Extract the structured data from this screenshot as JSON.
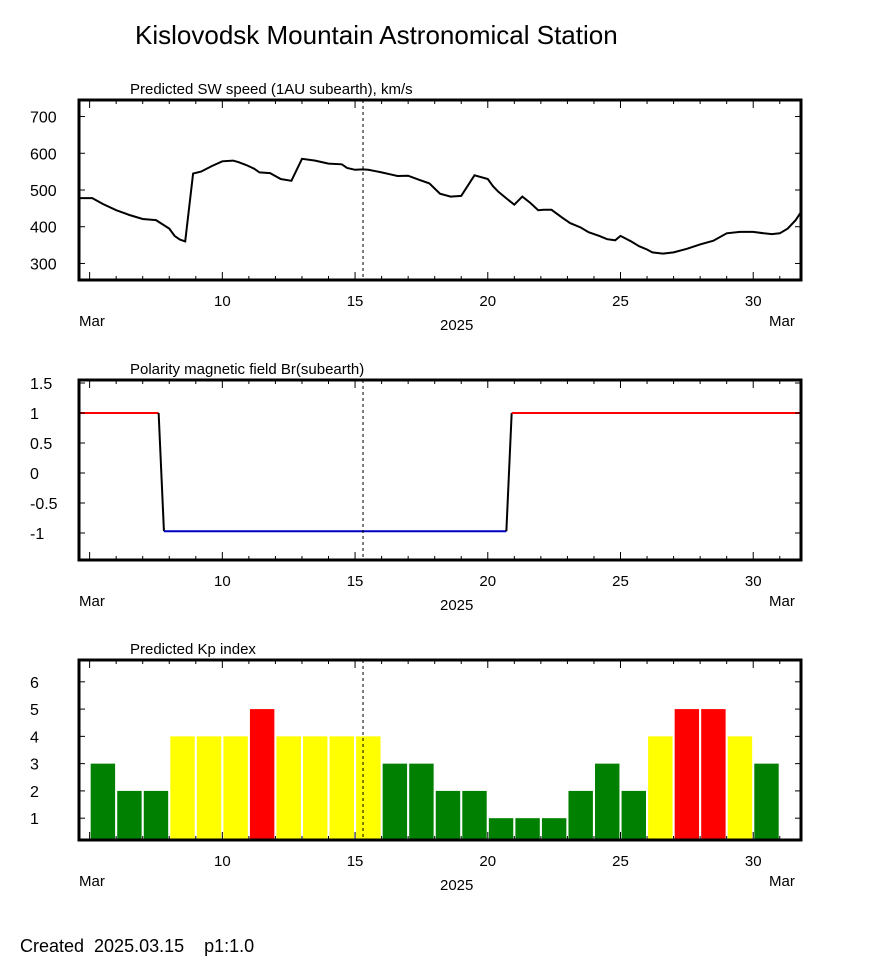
{
  "title": "Kislovodsk Mountain Astronomical Station",
  "footer": "Created  2025.03.15    p1:1.0",
  "colors": {
    "axis": "#000000",
    "speed_line": "#000000",
    "polarity_positive": "#ff0000",
    "polarity_negative": "#0000c0",
    "polarity_transition": "#000000",
    "kp_low": "#008000",
    "kp_mid": "#ffff00",
    "kp_high": "#ff0000",
    "now_marker": "#000000"
  },
  "shared_x": {
    "tick_labels": [
      "10",
      "15",
      "20",
      "25",
      "30"
    ],
    "left_month": "Mar",
    "right_month": "Mar",
    "year_label": "2025",
    "now_day": 15.3
  },
  "chart_data": [
    {
      "type": "line",
      "title": "Predicted SW speed (1AU subearth), km/s",
      "xlim": [
        4.6,
        31.8
      ],
      "ylim": [
        255,
        745
      ],
      "yticks": [
        "700",
        "600",
        "500",
        "400",
        "300"
      ],
      "grid": false,
      "series": [
        {
          "x": [
            4.6,
            5.1,
            5.5,
            6.0,
            6.5,
            7.0,
            7.5,
            8.0,
            8.2,
            8.4,
            8.6,
            8.9,
            9.2,
            9.6,
            10.0,
            10.4,
            10.6,
            10.9,
            11.2,
            11.4,
            11.8,
            12.2,
            12.6,
            13.0,
            13.5,
            14.0,
            14.5,
            14.7,
            15.0,
            15.3,
            15.5,
            15.8,
            16.0,
            16.3,
            16.6,
            17.0,
            17.4,
            17.8,
            18.2,
            18.6,
            19.0,
            19.5,
            20.0,
            20.2,
            20.4,
            20.7,
            21.0,
            21.3,
            21.6,
            21.9,
            22.1,
            22.4,
            22.8,
            23.1,
            23.5,
            23.8,
            24.2,
            24.5,
            24.8,
            25.0,
            25.4,
            25.7,
            26.0,
            26.2,
            26.6,
            27.0,
            27.5,
            28.0,
            28.5,
            29.0,
            29.5,
            30.0,
            30.4,
            30.7,
            31.0,
            31.3,
            31.6,
            31.8
          ],
          "y": [
            478,
            478,
            462,
            445,
            432,
            421,
            418,
            395,
            375,
            365,
            360,
            545,
            550,
            565,
            578,
            580,
            576,
            568,
            558,
            548,
            546,
            530,
            525,
            585,
            580,
            572,
            570,
            560,
            555,
            556,
            555,
            551,
            548,
            543,
            538,
            539,
            528,
            518,
            490,
            482,
            484,
            540,
            530,
            510,
            495,
            477,
            460,
            482,
            465,
            445,
            446,
            446,
            425,
            410,
            398,
            385,
            375,
            366,
            363,
            375,
            360,
            347,
            338,
            330,
            327,
            330,
            340,
            352,
            362,
            382,
            386,
            386,
            382,
            380,
            382,
            395,
            418,
            440
          ],
          "note": "speed series"
        }
      ]
    },
    {
      "type": "line",
      "title": "Polarity magnetic field  Br(subearth)",
      "xlim": [
        4.6,
        31.8
      ],
      "ylim": [
        -1.45,
        1.55
      ],
      "yticks": [
        "1.5",
        "1",
        "0.5",
        "0",
        "-0.5",
        "-1"
      ],
      "grid": false,
      "series": [
        {
          "x": [
            4.6,
            7.6,
            7.8,
            20.7,
            20.9,
            31.8
          ],
          "y": [
            1,
            1,
            -0.97,
            -0.97,
            1,
            1
          ]
        }
      ]
    },
    {
      "type": "bar",
      "title": "Predicted Kp index",
      "xlim": [
        4.6,
        31.8
      ],
      "ylim": [
        0.2,
        6.8
      ],
      "yticks": [
        "6",
        "5",
        "4",
        "3",
        "2",
        "1"
      ],
      "grid": false,
      "categories": [
        5.5,
        6.5,
        7.5,
        8.5,
        9.5,
        10.5,
        11.5,
        12.5,
        13.5,
        14.5,
        15.5,
        16.5,
        17.5,
        18.5,
        19.5,
        20.5,
        21.5,
        22.5,
        23.5,
        24.5,
        25.5,
        26.5,
        27.5,
        28.5,
        29.5,
        30.5
      ],
      "values": [
        3,
        2,
        2,
        4,
        4,
        4,
        5,
        4,
        4,
        4,
        4,
        3,
        3,
        2,
        2,
        1,
        1,
        1,
        2,
        3,
        2,
        4,
        5,
        5,
        4,
        3
      ]
    }
  ]
}
